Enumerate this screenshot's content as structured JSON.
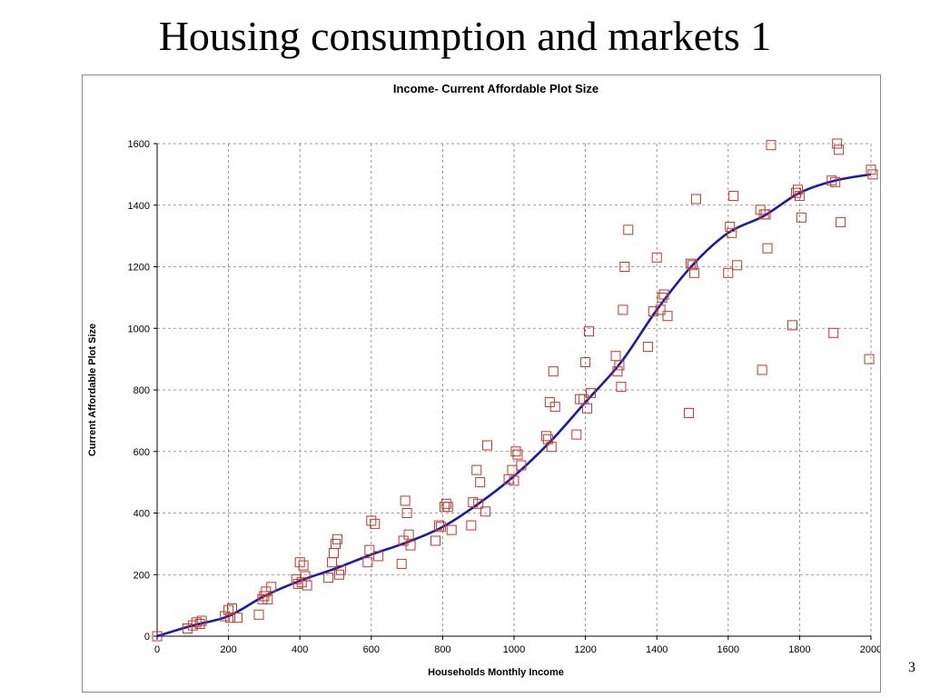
{
  "slide": {
    "title": "Housing consumption and markets 1",
    "page_number": "3"
  },
  "colors": {
    "marker": "#c0392b",
    "trend": "#1a1aa8",
    "grid": "#7f7f7f"
  },
  "chart_data": {
    "type": "scatter",
    "title": "Income- Current Affordable Plot Size",
    "xlabel": "Households Monthly Income",
    "ylabel": "Current Affordable Plot Size",
    "xlim": [
      0,
      2000
    ],
    "ylim": [
      0,
      1600
    ],
    "xticks": [
      0,
      200,
      400,
      600,
      800,
      1000,
      1200,
      1400,
      1600,
      1800,
      2000
    ],
    "yticks": [
      0,
      200,
      400,
      600,
      800,
      1000,
      1200,
      1400,
      1600
    ],
    "grid": true,
    "legend": "none",
    "series": [
      {
        "marker": "square",
        "points": [
          [
            0,
            0
          ],
          [
            85,
            25
          ],
          [
            100,
            35
          ],
          [
            110,
            45
          ],
          [
            120,
            40
          ],
          [
            125,
            50
          ],
          [
            190,
            65
          ],
          [
            200,
            85
          ],
          [
            205,
            60
          ],
          [
            210,
            90
          ],
          [
            225,
            60
          ],
          [
            285,
            70
          ],
          [
            295,
            120
          ],
          [
            300,
            130
          ],
          [
            305,
            145
          ],
          [
            310,
            120
          ],
          [
            320,
            160
          ],
          [
            390,
            185
          ],
          [
            395,
            170
          ],
          [
            400,
            240
          ],
          [
            405,
            175
          ],
          [
            410,
            230
          ],
          [
            415,
            195
          ],
          [
            420,
            165
          ],
          [
            480,
            190
          ],
          [
            490,
            240
          ],
          [
            495,
            270
          ],
          [
            500,
            300
          ],
          [
            505,
            315
          ],
          [
            510,
            200
          ],
          [
            515,
            215
          ],
          [
            590,
            240
          ],
          [
            595,
            280
          ],
          [
            600,
            375
          ],
          [
            610,
            365
          ],
          [
            620,
            260
          ],
          [
            685,
            235
          ],
          [
            690,
            310
          ],
          [
            695,
            440
          ],
          [
            700,
            400
          ],
          [
            705,
            330
          ],
          [
            710,
            295
          ],
          [
            780,
            310
          ],
          [
            790,
            360
          ],
          [
            795,
            355
          ],
          [
            805,
            420
          ],
          [
            810,
            430
          ],
          [
            815,
            420
          ],
          [
            825,
            345
          ],
          [
            880,
            360
          ],
          [
            885,
            435
          ],
          [
            895,
            540
          ],
          [
            900,
            430
          ],
          [
            905,
            500
          ],
          [
            920,
            405
          ],
          [
            925,
            620
          ],
          [
            985,
            510
          ],
          [
            995,
            540
          ],
          [
            1000,
            505
          ],
          [
            1005,
            600
          ],
          [
            1010,
            590
          ],
          [
            1020,
            555
          ],
          [
            1090,
            650
          ],
          [
            1095,
            640
          ],
          [
            1100,
            760
          ],
          [
            1105,
            615
          ],
          [
            1110,
            860
          ],
          [
            1115,
            745
          ],
          [
            1175,
            655
          ],
          [
            1185,
            770
          ],
          [
            1195,
            770
          ],
          [
            1200,
            890
          ],
          [
            1205,
            740
          ],
          [
            1210,
            990
          ],
          [
            1215,
            790
          ],
          [
            1285,
            910
          ],
          [
            1290,
            860
          ],
          [
            1295,
            880
          ],
          [
            1300,
            810
          ],
          [
            1305,
            1060
          ],
          [
            1310,
            1200
          ],
          [
            1320,
            1320
          ],
          [
            1375,
            940
          ],
          [
            1390,
            1055
          ],
          [
            1400,
            1230
          ],
          [
            1410,
            1060
          ],
          [
            1415,
            1100
          ],
          [
            1420,
            1110
          ],
          [
            1430,
            1040
          ],
          [
            1490,
            725
          ],
          [
            1495,
            1210
          ],
          [
            1500,
            1205
          ],
          [
            1505,
            1180
          ],
          [
            1510,
            1420
          ],
          [
            1600,
            1180
          ],
          [
            1605,
            1330
          ],
          [
            1610,
            1310
          ],
          [
            1615,
            1430
          ],
          [
            1625,
            1205
          ],
          [
            1690,
            1385
          ],
          [
            1695,
            865
          ],
          [
            1700,
            1370
          ],
          [
            1705,
            1370
          ],
          [
            1710,
            1260
          ],
          [
            1720,
            1595
          ],
          [
            1780,
            1010
          ],
          [
            1790,
            1440
          ],
          [
            1795,
            1450
          ],
          [
            1800,
            1430
          ],
          [
            1805,
            1360
          ],
          [
            1890,
            1480
          ],
          [
            1895,
            985
          ],
          [
            1900,
            1475
          ],
          [
            1905,
            1600
          ],
          [
            1910,
            1580
          ],
          [
            1915,
            1345
          ],
          [
            1995,
            900
          ],
          [
            2000,
            1515
          ],
          [
            2005,
            1500
          ]
        ]
      },
      {
        "style": "smooth-line",
        "points": [
          [
            0,
            0
          ],
          [
            100,
            35
          ],
          [
            200,
            65
          ],
          [
            300,
            130
          ],
          [
            400,
            180
          ],
          [
            500,
            220
          ],
          [
            600,
            265
          ],
          [
            700,
            305
          ],
          [
            800,
            355
          ],
          [
            900,
            430
          ],
          [
            1000,
            520
          ],
          [
            1100,
            630
          ],
          [
            1200,
            760
          ],
          [
            1300,
            890
          ],
          [
            1400,
            1060
          ],
          [
            1500,
            1205
          ],
          [
            1600,
            1310
          ],
          [
            1700,
            1365
          ],
          [
            1800,
            1440
          ],
          [
            1900,
            1480
          ],
          [
            2000,
            1500
          ]
        ]
      }
    ]
  }
}
